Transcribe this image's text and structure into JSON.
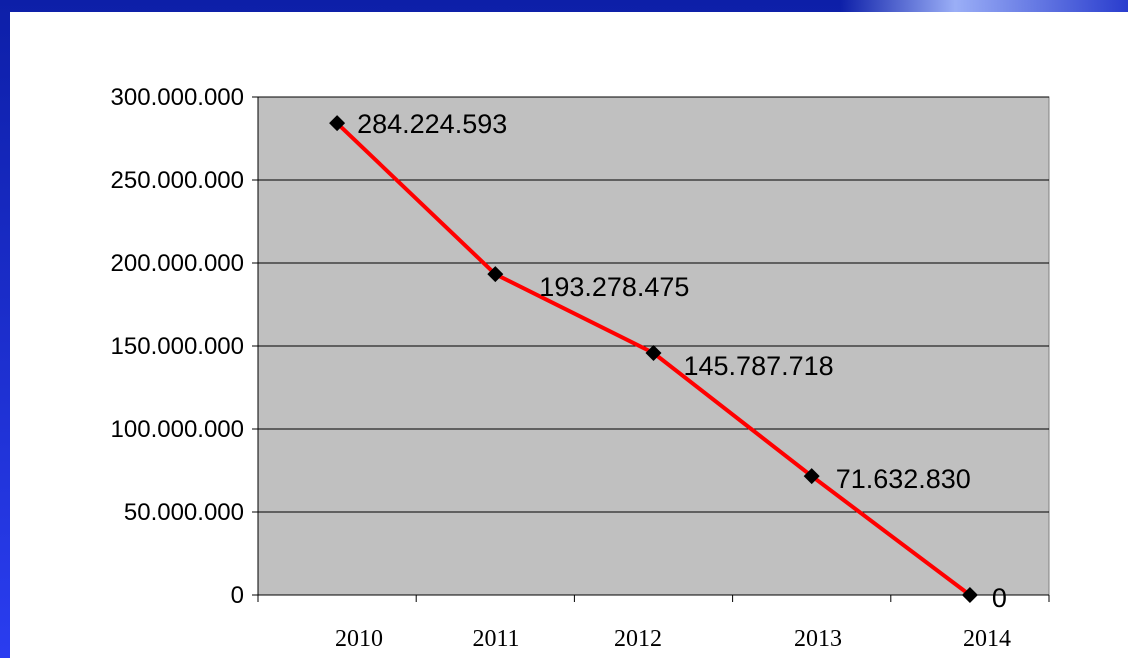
{
  "colors": {
    "frame": "#1a2fd6",
    "background": "#ffffff",
    "plot_area": "#c0c0c0",
    "line": "#ff0000",
    "marker": "#000000",
    "gridline": "#000000"
  },
  "chart_data": {
    "type": "line",
    "categories": [
      "2010",
      "2011",
      "2012",
      "2013",
      "2014"
    ],
    "series": [
      {
        "values": [
          284224593,
          193278475,
          145787718,
          71632830,
          0
        ],
        "data_labels": [
          "284.224.593",
          "193.278.475",
          "145.787.718",
          "71.632.830",
          "0"
        ],
        "marker": "diamond"
      }
    ],
    "ylim": [
      0,
      300000000
    ],
    "y_ticks": [
      0,
      50000000,
      100000000,
      150000000,
      200000000,
      250000000,
      300000000
    ],
    "y_tick_labels": [
      "0",
      "50.000.000",
      "100.000.000",
      "150.000.000",
      "200.000.000",
      "250.000.000",
      "300.000.000"
    ],
    "grid": "horizontal",
    "legend": "none"
  }
}
